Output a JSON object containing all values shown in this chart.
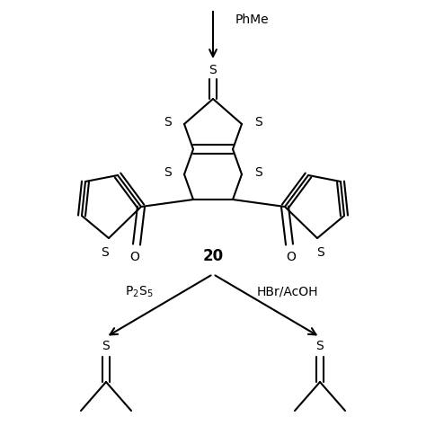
{
  "bg_color": "#ffffff",
  "line_color": "#000000",
  "line_width": 1.5,
  "label_fontsize": 10,
  "compound_label": "20",
  "top_arrow_label": "PhMe",
  "left_arrow_label": "P₂S₅",
  "right_arrow_label": "HBr/AcOH",
  "figsize": [
    4.74,
    4.74
  ],
  "dpi": 100
}
